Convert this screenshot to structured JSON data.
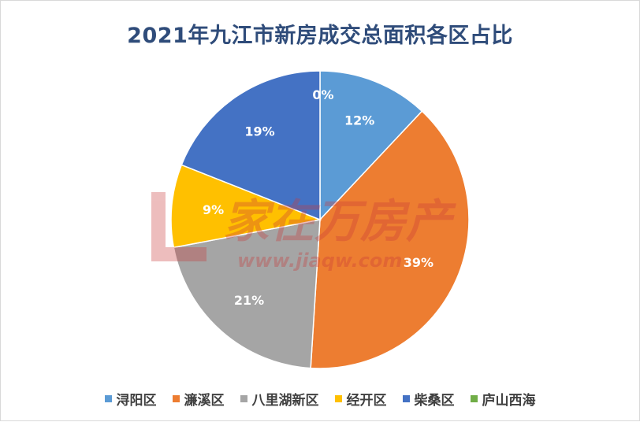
{
  "chart_data": {
    "type": "pie",
    "title": "2021年九江市新房成交总面积各区占比",
    "categories": [
      "浔阳区",
      "濂溪区",
      "八里湖新区",
      "经开区",
      "柴桑区",
      "庐山西海"
    ],
    "values": [
      12,
      39,
      21,
      9,
      19,
      0
    ],
    "data_labels": [
      "12%",
      "39%",
      "21%",
      "9%",
      "19%",
      "0%"
    ],
    "colors": [
      "#5b9bd5",
      "#ed7d31",
      "#a5a5a5",
      "#ffc000",
      "#4472c4",
      "#70ad47"
    ],
    "legend_position": "bottom"
  },
  "watermark": {
    "brand": "家在万房产",
    "url": "www.jiaqw.com"
  }
}
